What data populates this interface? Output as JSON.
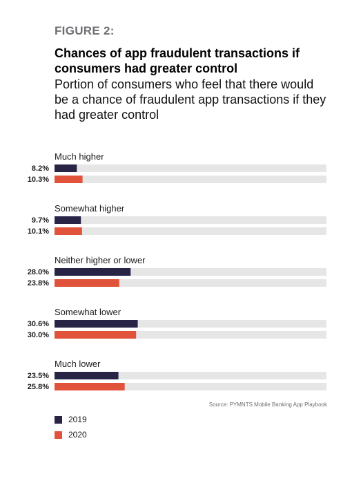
{
  "figure_label": "FIGURE 2:",
  "title": "Chances of app fraudulent transactions if consumers had greater control",
  "subtitle": "Portion of consumers who feel that there would be a chance of fraudulent app transactions if they had greater control",
  "source": "Source: PYMNTS Mobile Banking App Playbook",
  "colors": {
    "series_2019": "#272446",
    "series_2020": "#e0533a",
    "track": "#e6e6e6"
  },
  "chart_data": {
    "type": "bar",
    "orientation": "horizontal",
    "categories": [
      "Much higher",
      "Somewhat higher",
      "Neither higher or lower",
      "Somewhat lower",
      "Much lower"
    ],
    "series": [
      {
        "name": "2019",
        "values": [
          8.2,
          9.7,
          28.0,
          30.6,
          23.5
        ],
        "labels": [
          "8.2%",
          "9.7%",
          "28.0%",
          "30.6%",
          "23.5%"
        ]
      },
      {
        "name": "2020",
        "values": [
          10.3,
          10.1,
          23.8,
          30.0,
          25.8
        ],
        "labels": [
          "10.3%",
          "10.1%",
          "23.8%",
          "30.0%",
          "25.8%"
        ]
      }
    ],
    "xlim": [
      0,
      100
    ],
    "legend_position": "bottom-left",
    "grid": false
  }
}
